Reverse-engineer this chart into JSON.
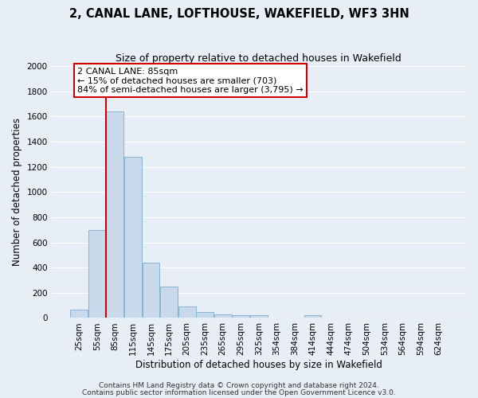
{
  "title": "2, CANAL LANE, LOFTHOUSE, WAKEFIELD, WF3 3HN",
  "subtitle": "Size of property relative to detached houses in Wakefield",
  "xlabel": "Distribution of detached houses by size in Wakefield",
  "ylabel": "Number of detached properties",
  "bar_labels": [
    "25sqm",
    "55sqm",
    "85sqm",
    "115sqm",
    "145sqm",
    "175sqm",
    "205sqm",
    "235sqm",
    "265sqm",
    "295sqm",
    "325sqm",
    "354sqm",
    "384sqm",
    "414sqm",
    "444sqm",
    "474sqm",
    "504sqm",
    "534sqm",
    "564sqm",
    "594sqm",
    "624sqm"
  ],
  "bar_values": [
    65,
    700,
    1640,
    1280,
    440,
    250,
    90,
    50,
    30,
    20,
    20,
    0,
    0,
    20,
    0,
    0,
    0,
    0,
    0,
    0,
    0
  ],
  "bar_color": "#c8d9ec",
  "bar_edge_color": "#7aacce",
  "bar_width": 0.97,
  "vline_x": 2.0,
  "vline_color": "#cc0000",
  "annotation_line1": "2 CANAL LANE: 85sqm",
  "annotation_line2": "← 15% of detached houses are smaller (703)",
  "annotation_line3": "84% of semi-detached houses are larger (3,795) →",
  "annotation_box_color": "#ffffff",
  "annotation_box_edge": "#cc0000",
  "ylim": [
    0,
    2000
  ],
  "yticks": [
    0,
    200,
    400,
    600,
    800,
    1000,
    1200,
    1400,
    1600,
    1800,
    2000
  ],
  "footer1": "Contains HM Land Registry data © Crown copyright and database right 2024.",
  "footer2": "Contains public sector information licensed under the Open Government Licence v3.0.",
  "bg_color": "#e8eef5",
  "plot_bg_color": "#e8eef5",
  "grid_color": "#ffffff",
  "title_fontsize": 10.5,
  "subtitle_fontsize": 9,
  "axis_label_fontsize": 8.5,
  "tick_fontsize": 7.5,
  "annotation_fontsize": 8,
  "footer_fontsize": 6.5
}
